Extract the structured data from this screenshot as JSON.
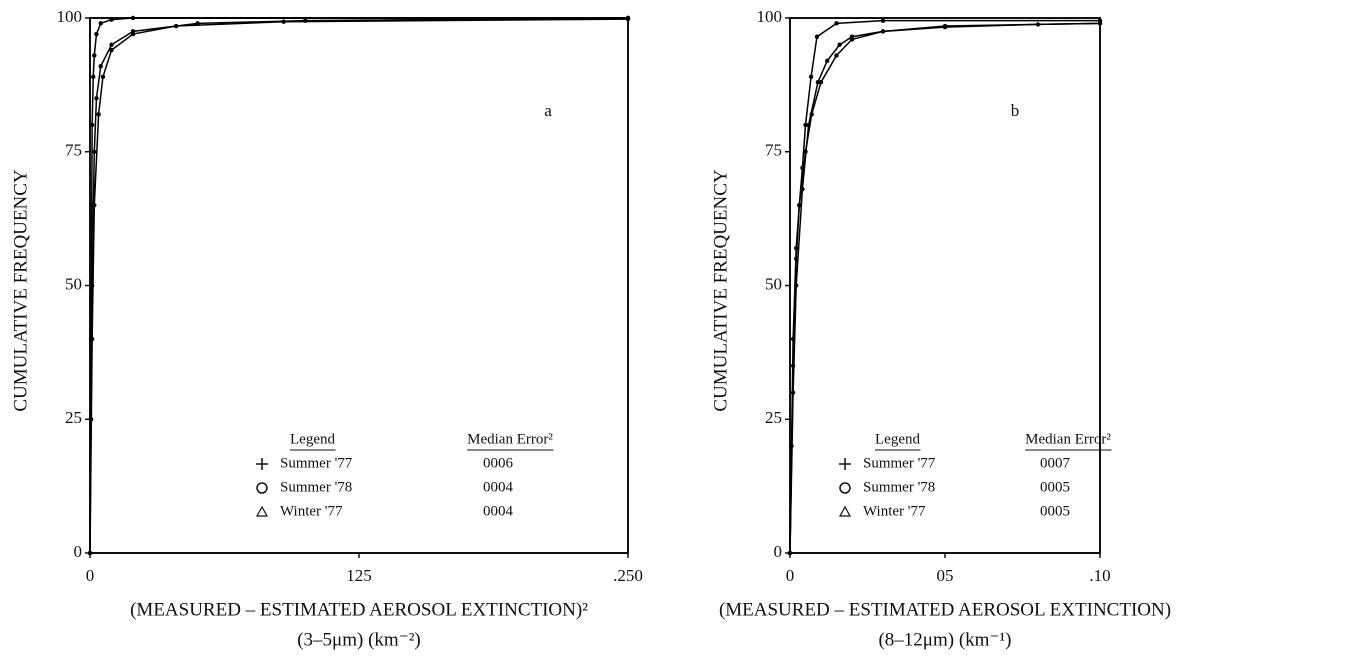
{
  "chart_data": [
    {
      "type": "line",
      "y_label": "CUMULATIVE FREQUENCY",
      "x_label": "(MEASURED – ESTIMATED AEROSOL EXTINCTION)²",
      "x_label_units": "(3–5μm) (km⁻²)",
      "annotation": "a",
      "xlim": [
        0,
        0.25
      ],
      "xticks": [
        0,
        {
          "value": 0.125,
          "label": "125"
        },
        {
          "value": 0.25,
          "label": ".250"
        }
      ],
      "ylim": [
        0,
        100
      ],
      "yticks": [
        0,
        25,
        50,
        75,
        100
      ],
      "legend": {
        "title": "Legend",
        "error_title": "Median Error²",
        "median_errors": [
          "0006",
          "0004",
          "0004"
        ]
      },
      "series": [
        {
          "name": "Summer '77",
          "color": "#000",
          "x": [
            0,
            0.0005,
            0.001,
            0.0015,
            0.002,
            0.003,
            0.005,
            0.01,
            0.02,
            0.25
          ],
          "values": [
            0,
            40,
            80,
            89,
            93,
            97,
            99,
            99.7,
            100,
            100
          ]
        },
        {
          "name": "Summer '78",
          "color": "#000",
          "x": [
            0,
            0.0005,
            0.001,
            0.002,
            0.003,
            0.005,
            0.01,
            0.02,
            0.05,
            0.1,
            0.25
          ],
          "values": [
            0,
            25,
            50,
            75,
            85,
            91,
            95,
            97.5,
            99,
            99.5,
            100
          ]
        },
        {
          "name": "Winter '77",
          "color": "#000",
          "x": [
            0,
            0.001,
            0.002,
            0.004,
            0.006,
            0.01,
            0.02,
            0.04,
            0.09,
            0.25
          ],
          "values": [
            0,
            40,
            65,
            82,
            89,
            94,
            97,
            98.5,
            99.3,
            99.8
          ]
        }
      ]
    },
    {
      "type": "line",
      "y_label": "CUMULATIVE FREQUENCY",
      "x_label": "(MEASURED – ESTIMATED AEROSOL EXTINCTION)",
      "x_label_units": "(8–12μm) (km⁻¹)",
      "annotation": "b",
      "xlim": [
        0,
        0.1
      ],
      "xticks": [
        0,
        {
          "value": 0.05,
          "label": "05"
        },
        {
          "value": 0.1,
          "label": ".10"
        }
      ],
      "ylim": [
        0,
        100
      ],
      "yticks": [
        0,
        25,
        50,
        75,
        100
      ],
      "legend": {
        "title": "Legend",
        "error_title": "Median Error²",
        "median_errors": [
          "0007",
          "0005",
          "0005"
        ]
      },
      "series": [
        {
          "name": "Summer '77",
          "color": "#000",
          "x": [
            0,
            0.0005,
            0.001,
            0.002,
            0.003,
            0.004,
            0.005,
            0.0068,
            0.0087,
            0.015,
            0.03,
            0.1
          ],
          "values": [
            0,
            20,
            40,
            57,
            65,
            72,
            80,
            89,
            96.5,
            99,
            99.5,
            99.5
          ]
        },
        {
          "name": "Summer '78",
          "color": "#000",
          "x": [
            0,
            0.001,
            0.002,
            0.003,
            0.005,
            0.007,
            0.01,
            0.015,
            0.02,
            0.03,
            0.05,
            0.08,
            0.1
          ],
          "values": [
            0,
            35,
            55,
            65,
            75,
            82,
            88,
            93,
            96,
            97.5,
            98.3,
            98.8,
            99
          ]
        },
        {
          "name": "Winter '77",
          "color": "#000",
          "x": [
            0,
            0.001,
            0.002,
            0.004,
            0.006,
            0.009,
            0.012,
            0.016,
            0.02,
            0.03,
            0.05,
            0.1
          ],
          "values": [
            0,
            30,
            50,
            68,
            80,
            88,
            92,
            95,
            96.5,
            97.5,
            98.5,
            99
          ]
        }
      ]
    }
  ]
}
